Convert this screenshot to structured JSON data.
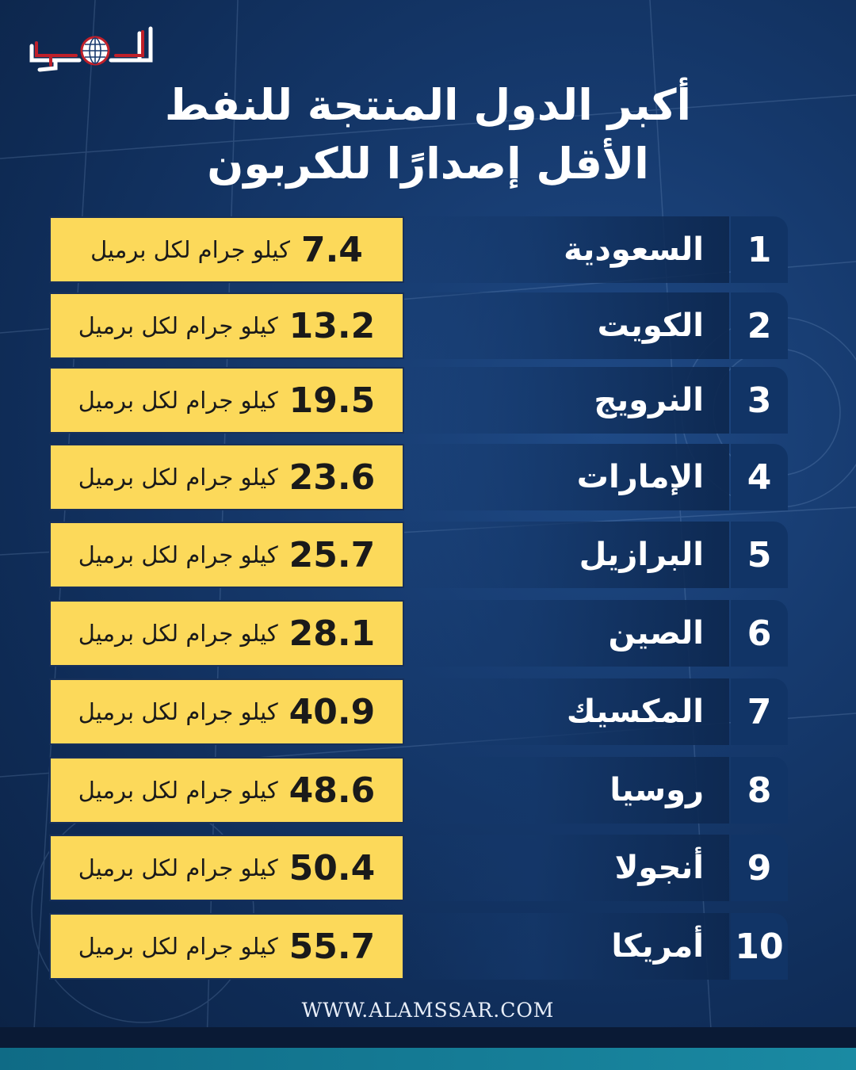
{
  "brand": {
    "logo_text": "الأمصار",
    "website": "WWW.ALAMSSAR.COM",
    "colors": {
      "background": "#163a6e",
      "value_box": "#fcd95a",
      "number_box": "#113466",
      "text": "#ffffff"
    }
  },
  "title": {
    "line1": "أكبر الدول المنتجة للنفط",
    "line2": "الأقل إصدارًا للكربون"
  },
  "unit_label": "كيلو جرام لكل برميل",
  "rows": [
    {
      "rank": "1",
      "country": "السعودية",
      "value": "7.4"
    },
    {
      "rank": "2",
      "country": "الكويت",
      "value": "13.2"
    },
    {
      "rank": "3",
      "country": "النرويج",
      "value": "19.5"
    },
    {
      "rank": "4",
      "country": "الإمارات",
      "value": "23.6"
    },
    {
      "rank": "5",
      "country": "البرازيل",
      "value": "25.7"
    },
    {
      "rank": "6",
      "country": "الصين",
      "value": "28.1"
    },
    {
      "rank": "7",
      "country": "المكسيك",
      "value": "40.9"
    },
    {
      "rank": "8",
      "country": "روسيا",
      "value": "48.6"
    },
    {
      "rank": "9",
      "country": "أنجولا",
      "value": "50.4"
    },
    {
      "rank": "10",
      "country": "أمريكا",
      "value": "55.7"
    }
  ]
}
